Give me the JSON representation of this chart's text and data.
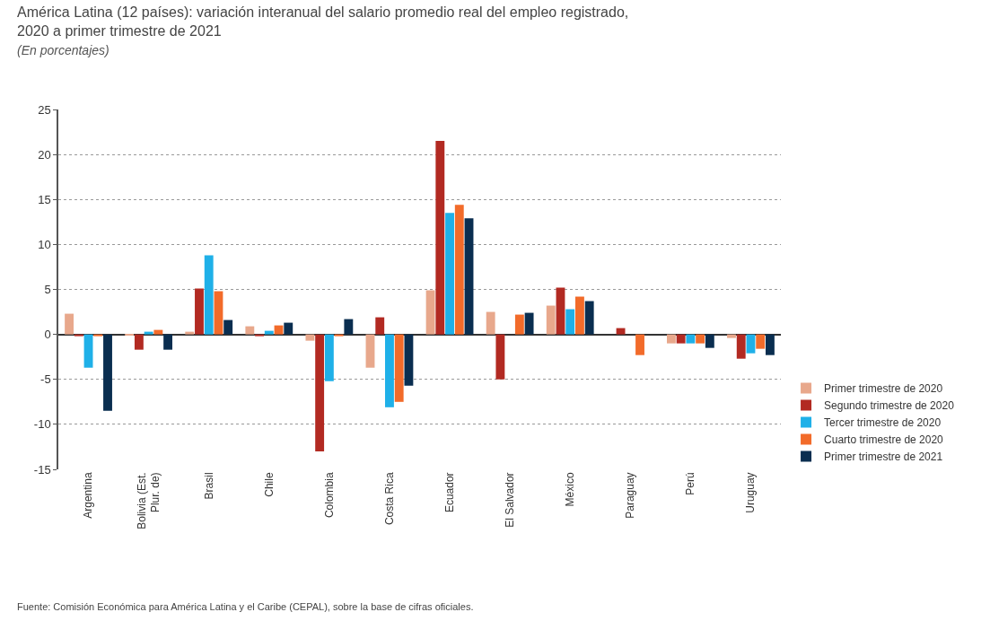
{
  "chart_data": {
    "type": "bar",
    "title": "América Latina (12 países): variación interanual del salario promedio real del empleo registrado, 2020 a primer trimestre de 2021",
    "subtitle": "(En porcentajes)",
    "categories": [
      "Argentina",
      "Bolivia (Est. Plur. de)",
      "Brasil",
      "Chile",
      "Colombia",
      "Costa Rica",
      "Ecuador",
      "El Salvador",
      "México",
      "Paraguay",
      "Perú",
      "Uruguay"
    ],
    "series": [
      {
        "name": "Primer trimestre de 2020",
        "color": "#e8a88c",
        "values": [
          2.3,
          -0.1,
          0.3,
          0.9,
          -0.7,
          -3.7,
          4.9,
          2.5,
          3.2,
          null,
          -1.0,
          -0.4
        ]
      },
      {
        "name": "Segundo trimestre de 2020",
        "color": "#b22a22",
        "values": [
          -0.2,
          -1.7,
          5.1,
          -0.2,
          -13.0,
          1.9,
          21.5,
          -5.0,
          5.2,
          0.7,
          -1.0,
          -2.7
        ]
      },
      {
        "name": "Tercer trimestre de 2020",
        "color": "#1fb0e8",
        "values": [
          -3.7,
          0.3,
          8.8,
          0.4,
          -5.2,
          -8.1,
          13.5,
          null,
          2.8,
          null,
          -1.0,
          -2.1
        ]
      },
      {
        "name": "Cuarto trimestre de 2020",
        "color": "#f26b2a",
        "values": [
          -0.2,
          0.5,
          4.8,
          1.0,
          -0.2,
          -7.5,
          14.4,
          2.2,
          4.2,
          -2.3,
          -1.0,
          -1.6
        ]
      },
      {
        "name": "Primer trimestre de 2021",
        "color": "#0a2e50",
        "values": [
          -8.5,
          -1.7,
          1.6,
          1.3,
          1.7,
          -5.7,
          12.9,
          2.4,
          3.7,
          null,
          -1.5,
          -2.3
        ]
      }
    ],
    "ylim": [
      -15,
      25
    ],
    "yticks": [
      -15,
      -10,
      -5,
      0,
      5,
      10,
      15,
      20,
      25
    ],
    "grid": "y",
    "legend": "right",
    "annotations": [
      "Fuente: Comisión Económica para América Latina y el Caribe (CEPAL), sobre la base de cifras oficiales."
    ]
  }
}
